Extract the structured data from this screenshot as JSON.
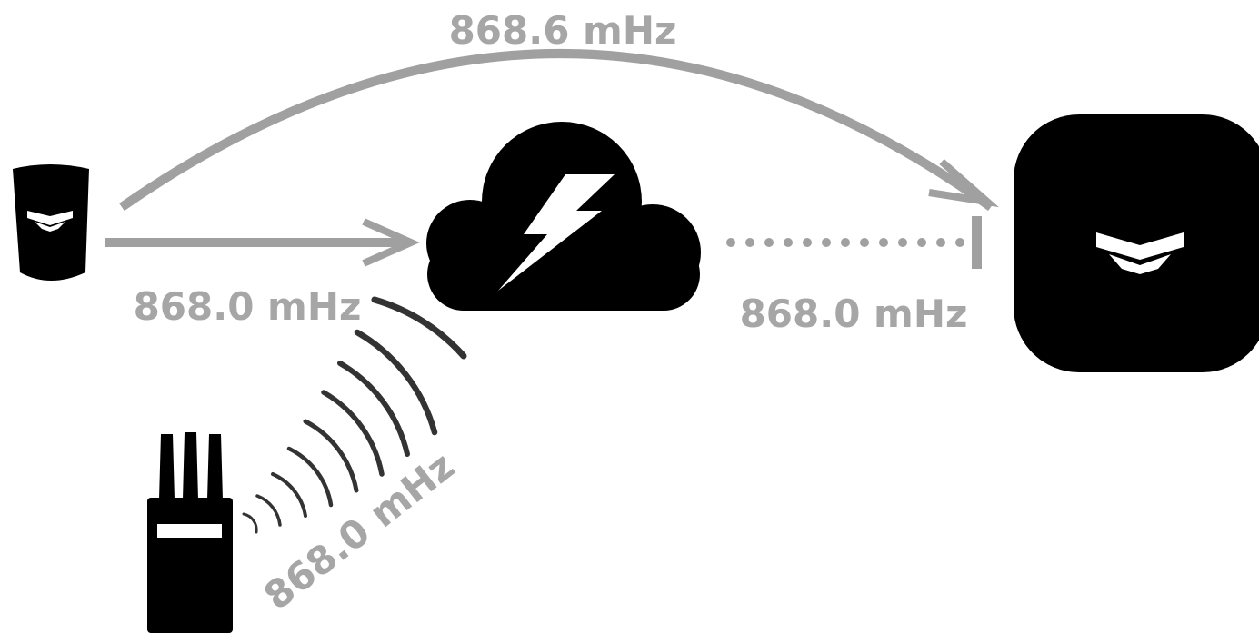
{
  "labels": {
    "top_arc_frequency": "868.6 mHz",
    "left_frequency": "868.0 mHz",
    "right_frequency": "868.0 mHz",
    "jammer_frequency": "868.0 mHz"
  },
  "colors": {
    "label_gray": "#a6a6a6",
    "arrow_gray": "#a0a0a0",
    "device_black": "#000000",
    "wave_dark": "#333333",
    "background": "#ffffff",
    "icon_white": "#ffffff"
  },
  "icons": {
    "sensor": "motion-sensor-icon",
    "interference": "storm-cloud-icon",
    "hub": "hub-icon",
    "jammer": "radio-jammer-icon",
    "signal": "radio-waves-icon",
    "lightning": "lightning-bolt-icon"
  }
}
